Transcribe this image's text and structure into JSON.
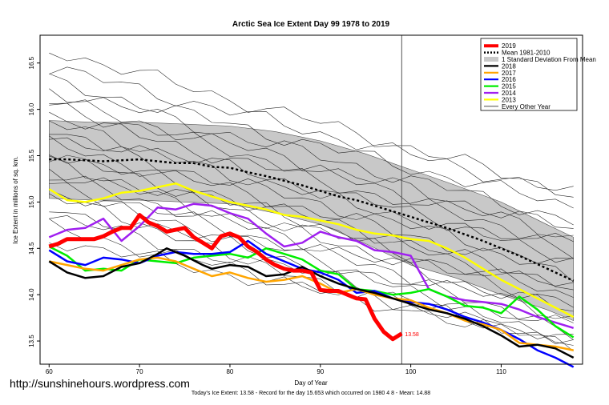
{
  "chart_data": {
    "type": "line",
    "title": "Arctic Sea Ice Extent Day 99 1978 to 2019",
    "xlabel": "Day of Year",
    "ylabel": "Ice Extent in millions of sq. km.",
    "xlim": [
      59,
      119
    ],
    "ylim": [
      13.25,
      16.8
    ],
    "x_ticks": [
      "60",
      "70",
      "80",
      "90",
      "100",
      "110"
    ],
    "y_ticks": [
      "13.5",
      "14.0",
      "14.5",
      "15.0",
      "15.5",
      "16.0",
      "16.5"
    ],
    "current_day_marker": 99,
    "end_label": "13.58",
    "footer": "Today's Ice Extent: 13.58  - Record for the day  15.653 which occurred on 1980 4 8  - Mean: 14.88",
    "credit": "http://sunshinehours.wordpress.com",
    "legend_position": "top-right",
    "legend": [
      {
        "label": "2019",
        "color": "#ff0000",
        "style": "thick"
      },
      {
        "label": "Mean 1981-2010",
        "color": "#000000",
        "style": "dotted"
      },
      {
        "label": "1 Standard Deviation From Mean",
        "color": "#c8c8c8",
        "style": "box"
      },
      {
        "label": "2018",
        "color": "#000000",
        "style": "line"
      },
      {
        "label": "2017",
        "color": "#ffa500",
        "style": "line"
      },
      {
        "label": "2016",
        "color": "#0000ff",
        "style": "line"
      },
      {
        "label": "2015",
        "color": "#00ee00",
        "style": "line"
      },
      {
        "label": "2014",
        "color": "#a020f0",
        "style": "line"
      },
      {
        "label": "2013",
        "color": "#ffff00",
        "style": "line"
      },
      {
        "label": "Every Other Year",
        "color": "#333333",
        "style": "thin"
      }
    ],
    "band": {
      "x": [
        60,
        65,
        70,
        75,
        80,
        85,
        90,
        95,
        100,
        105,
        110,
        115,
        118
      ],
      "upper": [
        15.88,
        15.86,
        15.86,
        15.84,
        15.82,
        15.76,
        15.66,
        15.52,
        15.35,
        15.18,
        15.0,
        14.76,
        14.62
      ],
      "lower": [
        15.04,
        15.02,
        15.02,
        15.0,
        14.98,
        14.88,
        14.76,
        14.55,
        14.32,
        14.18,
        14.0,
        13.84,
        13.72
      ]
    },
    "mean": {
      "x": [
        60,
        62,
        64,
        66,
        68,
        70,
        72,
        74,
        76,
        78,
        80,
        82,
        84,
        86,
        88,
        90,
        92,
        94,
        96,
        98,
        100,
        102,
        104,
        106,
        108,
        110,
        112,
        114,
        116,
        118
      ],
      "y": [
        15.46,
        15.46,
        15.45,
        15.44,
        15.45,
        15.46,
        15.44,
        15.42,
        15.42,
        15.38,
        15.37,
        15.32,
        15.28,
        15.23,
        15.18,
        15.12,
        15.06,
        15.02,
        14.96,
        14.9,
        14.84,
        14.78,
        14.72,
        14.65,
        14.58,
        14.5,
        14.42,
        14.33,
        14.24,
        14.15
      ]
    },
    "series": [
      {
        "name": "2019",
        "color": "#ff0000",
        "width": 5,
        "x": [
          60,
          61,
          62,
          63,
          64,
          65,
          66,
          67,
          68,
          69,
          70,
          71,
          72,
          73,
          74,
          75,
          76,
          77,
          78,
          79,
          80,
          81,
          82,
          83,
          84,
          85,
          86,
          87,
          88,
          89,
          90,
          91,
          92,
          93,
          94,
          95,
          96,
          97,
          98,
          99
        ],
        "y": [
          14.52,
          14.55,
          14.6,
          14.6,
          14.6,
          14.6,
          14.63,
          14.68,
          14.72,
          14.72,
          14.86,
          14.78,
          14.74,
          14.68,
          14.7,
          14.72,
          14.62,
          14.56,
          14.5,
          14.63,
          14.66,
          14.62,
          14.52,
          14.46,
          14.38,
          14.32,
          14.28,
          14.26,
          14.26,
          14.24,
          14.05,
          14.04,
          14.04,
          14.0,
          13.96,
          13.95,
          13.74,
          13.6,
          13.52,
          13.58
        ]
      },
      {
        "name": "2018",
        "color": "#000000",
        "width": 2.5,
        "x": [
          60,
          62,
          64,
          66,
          68,
          70,
          72,
          73,
          75,
          77,
          78,
          80,
          82,
          84,
          86,
          88,
          90,
          92,
          94,
          96,
          98,
          100,
          102,
          104,
          106,
          108,
          110,
          112,
          114,
          116,
          118
        ],
        "y": [
          14.36,
          14.24,
          14.18,
          14.2,
          14.3,
          14.34,
          14.44,
          14.5,
          14.42,
          14.32,
          14.28,
          14.32,
          14.3,
          14.2,
          14.22,
          14.3,
          14.2,
          14.12,
          14.06,
          14.02,
          13.96,
          13.9,
          13.84,
          13.8,
          13.74,
          13.66,
          13.56,
          13.44,
          13.46,
          13.42,
          13.32
        ]
      },
      {
        "name": "2017",
        "color": "#ffa500",
        "width": 2.5,
        "x": [
          60,
          62,
          64,
          66,
          68,
          70,
          72,
          74,
          76,
          78,
          80,
          82,
          84,
          86,
          88,
          90,
          92,
          94,
          96,
          98,
          100,
          102,
          104,
          106,
          108,
          110,
          112,
          114,
          116,
          118
        ],
        "y": [
          14.36,
          14.32,
          14.28,
          14.26,
          14.32,
          14.38,
          14.4,
          14.36,
          14.28,
          14.2,
          14.24,
          14.18,
          14.14,
          14.16,
          14.2,
          14.12,
          14.02,
          14.06,
          14.0,
          13.96,
          13.94,
          13.86,
          13.8,
          13.72,
          13.68,
          13.62,
          13.48,
          13.46,
          13.44,
          13.4
        ]
      },
      {
        "name": "2016",
        "color": "#0000ff",
        "width": 2.5,
        "x": [
          60,
          62,
          64,
          66,
          68,
          70,
          72,
          74,
          76,
          78,
          80,
          82,
          84,
          86,
          88,
          90,
          92,
          94,
          96,
          98,
          100,
          102,
          104,
          106,
          108,
          110,
          112,
          114,
          116,
          118
        ],
        "y": [
          14.48,
          14.36,
          14.32,
          14.4,
          14.38,
          14.34,
          14.42,
          14.46,
          14.44,
          14.44,
          14.46,
          14.58,
          14.44,
          14.36,
          14.28,
          14.24,
          14.16,
          14.02,
          14.04,
          13.96,
          13.92,
          13.9,
          13.84,
          13.76,
          13.7,
          13.62,
          13.52,
          13.4,
          13.32,
          13.22
        ]
      },
      {
        "name": "2015",
        "color": "#00ee00",
        "width": 2.5,
        "x": [
          60,
          62,
          64,
          66,
          68,
          70,
          72,
          74,
          76,
          78,
          80,
          82,
          84,
          86,
          88,
          90,
          92,
          94,
          96,
          98,
          100,
          102,
          104,
          106,
          108,
          110,
          112,
          114,
          116,
          118
        ],
        "y": [
          14.52,
          14.42,
          14.26,
          14.28,
          14.26,
          14.38,
          14.36,
          14.34,
          14.4,
          14.42,
          14.44,
          14.4,
          14.5,
          14.44,
          14.38,
          14.26,
          14.22,
          14.06,
          14.04,
          14.0,
          14.02,
          14.06,
          13.98,
          13.88,
          13.86,
          13.8,
          13.98,
          13.84,
          13.66,
          13.54
        ]
      },
      {
        "name": "2014",
        "color": "#a020f0",
        "width": 2.5,
        "x": [
          60,
          62,
          64,
          66,
          68,
          70,
          72,
          74,
          76,
          78,
          80,
          82,
          84,
          86,
          88,
          90,
          92,
          94,
          96,
          98,
          100,
          102,
          104,
          106,
          108,
          110,
          112,
          114,
          116,
          118
        ],
        "y": [
          14.62,
          14.7,
          14.72,
          14.82,
          14.58,
          14.74,
          14.94,
          14.92,
          14.98,
          14.96,
          14.88,
          14.82,
          14.66,
          14.52,
          14.56,
          14.68,
          14.62,
          14.58,
          14.48,
          14.46,
          14.42,
          14.06,
          13.98,
          13.94,
          13.92,
          13.9,
          13.84,
          13.76,
          13.7,
          13.64
        ]
      },
      {
        "name": "2013",
        "color": "#ffff00",
        "width": 2.5,
        "x": [
          60,
          62,
          64,
          66,
          68,
          70,
          72,
          74,
          76,
          78,
          80,
          82,
          84,
          86,
          88,
          90,
          92,
          94,
          96,
          98,
          100,
          102,
          104,
          106,
          108,
          110,
          112,
          114,
          116,
          118
        ],
        "y": [
          15.14,
          15.02,
          15.0,
          15.04,
          15.1,
          15.12,
          15.16,
          15.2,
          15.12,
          15.06,
          15.0,
          14.96,
          14.92,
          14.86,
          14.84,
          14.8,
          14.76,
          14.7,
          14.66,
          14.64,
          14.6,
          14.58,
          14.5,
          14.4,
          14.28,
          14.16,
          14.06,
          13.96,
          13.86,
          13.76
        ]
      }
    ],
    "background_lines": [
      {
        "y0": 16.65,
        "y1": 15.1
      },
      {
        "y0": 16.45,
        "y1": 15.08
      },
      {
        "y0": 16.3,
        "y1": 14.95
      },
      {
        "y0": 16.22,
        "y1": 14.8
      },
      {
        "y0": 16.1,
        "y1": 14.7
      },
      {
        "y0": 16.05,
        "y1": 14.62
      },
      {
        "y0": 15.95,
        "y1": 14.55
      },
      {
        "y0": 15.85,
        "y1": 14.45
      },
      {
        "y0": 15.78,
        "y1": 14.4
      },
      {
        "y0": 15.7,
        "y1": 14.3
      },
      {
        "y0": 15.62,
        "y1": 14.2
      },
      {
        "y0": 15.55,
        "y1": 14.1
      },
      {
        "y0": 15.5,
        "y1": 14.05
      },
      {
        "y0": 15.42,
        "y1": 13.98
      },
      {
        "y0": 15.35,
        "y1": 13.9
      },
      {
        "y0": 15.28,
        "y1": 13.82
      },
      {
        "y0": 15.2,
        "y1": 13.75
      },
      {
        "y0": 15.12,
        "y1": 13.66
      },
      {
        "y0": 15.05,
        "y1": 13.58
      },
      {
        "y0": 14.95,
        "y1": 13.52
      },
      {
        "y0": 14.85,
        "y1": 13.48
      },
      {
        "y0": 14.72,
        "y1": 13.45
      },
      {
        "y0": 14.6,
        "y1": 13.5
      }
    ],
    "colors": {
      "plot_border": "#000000",
      "band_fill": "#c8c8c8",
      "day_marker": "#555555"
    }
  }
}
